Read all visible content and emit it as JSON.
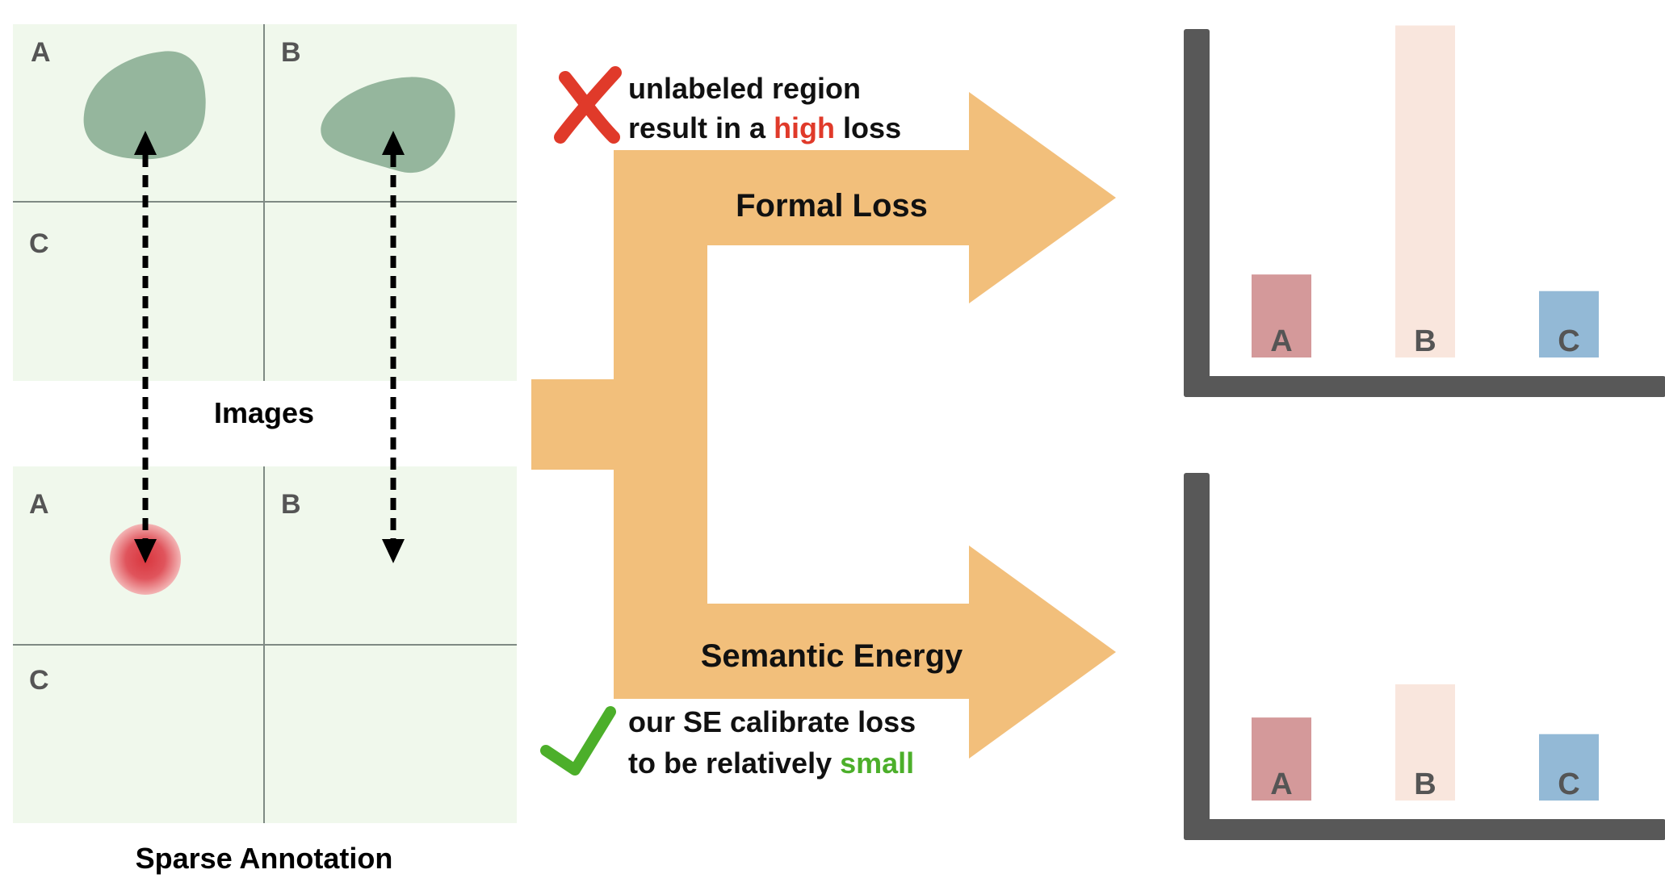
{
  "images_panel": {
    "caption": "Images",
    "cells": {
      "a": "A",
      "b": "B",
      "c": "C"
    }
  },
  "annotation_panel": {
    "caption": "Sparse Annotation",
    "cells": {
      "a": "A",
      "b": "B",
      "c": "C"
    }
  },
  "formal_loss": {
    "label": "Formal Loss",
    "note_line1": "unlabeled region",
    "note_line2_pre": "result in a ",
    "note_line2_highlight": "high",
    "note_line2_post": " loss",
    "highlight_color": "#e03a2a",
    "icon": "red-cross-icon"
  },
  "semantic_energy": {
    "label": "Semantic Energy",
    "note_line1": "our SE calibrate loss",
    "note_line2_pre": "to be relatively ",
    "note_line2_highlight": "small",
    "highlight_color": "#4caf2a",
    "icon": "green-check-icon"
  },
  "colors": {
    "panel_bg": "#f0f8ec",
    "blob": "#95b69d",
    "flow_arrow": "#f2bf7b",
    "axis": "#585858",
    "bar_a": "#d4999a",
    "bar_b": "#f9e6dd",
    "bar_c": "#93b9d6",
    "point_label": "#d9363e"
  },
  "chart_data": [
    {
      "type": "bar",
      "categories": [
        "A",
        "B",
        "C"
      ],
      "values": [
        1.0,
        4.0,
        0.8
      ],
      "ylim": [
        0,
        4.2
      ],
      "colors": [
        "#d4999a",
        "#f9e6dd",
        "#93b9d6"
      ]
    },
    {
      "type": "bar",
      "categories": [
        "A",
        "B",
        "C"
      ],
      "values": [
        1.0,
        1.4,
        0.8
      ],
      "ylim": [
        0,
        4.2
      ],
      "colors": [
        "#d4999a",
        "#f9e6dd",
        "#93b9d6"
      ]
    }
  ]
}
